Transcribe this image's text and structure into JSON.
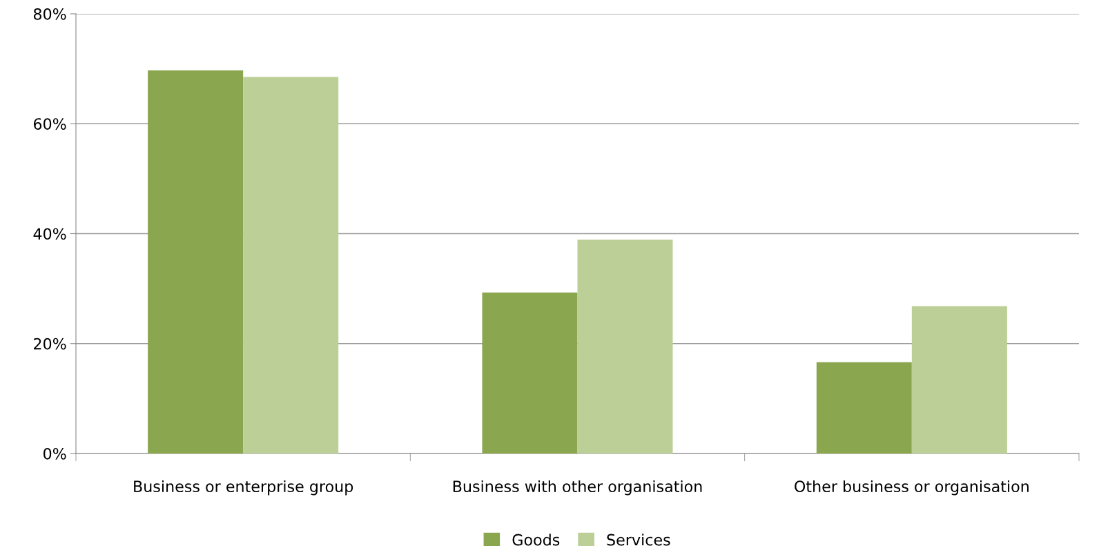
{
  "chart_data": {
    "type": "bar",
    "categories": [
      "Business or enterprise group",
      "Business with other organisation",
      "Other business or organisation"
    ],
    "series": [
      {
        "name": "Goods",
        "color": "#8aa64f",
        "values": [
          69.7,
          29.3,
          16.6
        ]
      },
      {
        "name": "Services",
        "color": "#bbcf97",
        "values": [
          68.5,
          38.9,
          26.8
        ]
      }
    ],
    "ylim": [
      0,
      80
    ],
    "yticks": [
      {
        "value": 0,
        "label": "0%"
      },
      {
        "value": 20,
        "label": "20%"
      },
      {
        "value": 40,
        "label": "40%"
      },
      {
        "value": 60,
        "label": "60%"
      },
      {
        "value": 80,
        "label": "80%"
      }
    ],
    "grid": "y",
    "legend": "bottom"
  }
}
